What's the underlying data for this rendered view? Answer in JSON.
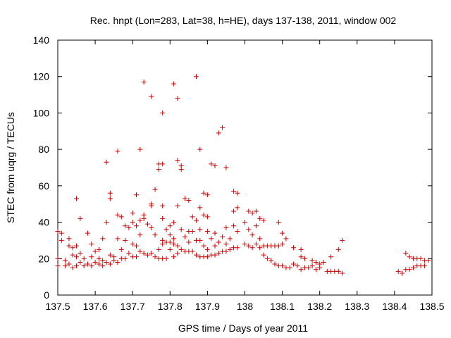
{
  "chart_data": {
    "type": "scatter",
    "title": "Rec. hnpt (Lon=283, Lat=38, h=HE), days 137-138, 2011, window 002",
    "xlabel": "GPS time / Days of year 2011",
    "ylabel": "STEC from uqrg / TECUs",
    "xlim": [
      137.5,
      138.5
    ],
    "ylim": [
      0,
      140
    ],
    "xticks": [
      "137.5",
      "137.6",
      "137.7",
      "137.8",
      "137.9",
      "138",
      "138.1",
      "138.2",
      "138.3",
      "138.4",
      "138.5"
    ],
    "yticks": [
      "0",
      "20",
      "40",
      "60",
      "80",
      "100",
      "120",
      "140"
    ],
    "grid": false,
    "marker": "+",
    "marker_color": "#cc0000",
    "series": [
      {
        "points": [
          [
            137.5,
            35
          ],
          [
            137.5,
            20
          ],
          [
            137.5,
            16
          ],
          [
            137.51,
            34
          ],
          [
            137.51,
            30
          ],
          [
            137.52,
            19
          ],
          [
            137.52,
            16
          ],
          [
            137.53,
            31
          ],
          [
            137.53,
            27
          ],
          [
            137.53,
            17
          ],
          [
            137.54,
            26
          ],
          [
            137.54,
            22
          ],
          [
            137.54,
            15
          ],
          [
            137.55,
            53
          ],
          [
            137.55,
            27
          ],
          [
            137.55,
            21
          ],
          [
            137.55,
            16
          ],
          [
            137.56,
            42
          ],
          [
            137.56,
            23
          ],
          [
            137.56,
            18
          ],
          [
            137.57,
            16
          ],
          [
            137.57,
            20
          ],
          [
            137.58,
            34
          ],
          [
            137.58,
            17
          ],
          [
            137.59,
            21
          ],
          [
            137.59,
            28
          ],
          [
            137.59,
            16
          ],
          [
            137.6,
            18
          ],
          [
            137.6,
            24
          ],
          [
            137.61,
            20
          ],
          [
            137.61,
            17
          ],
          [
            137.61,
            25
          ],
          [
            137.62,
            31
          ],
          [
            137.62,
            19
          ],
          [
            137.62,
            16
          ],
          [
            137.63,
            73
          ],
          [
            137.63,
            40
          ],
          [
            137.63,
            18
          ],
          [
            137.64,
            56
          ],
          [
            137.64,
            53
          ],
          [
            137.64,
            22
          ],
          [
            137.64,
            17
          ],
          [
            137.65,
            19
          ],
          [
            137.65,
            21
          ],
          [
            137.66,
            79
          ],
          [
            137.66,
            44
          ],
          [
            137.66,
            31
          ],
          [
            137.66,
            18
          ],
          [
            137.67,
            43
          ],
          [
            137.67,
            25
          ],
          [
            137.67,
            20
          ],
          [
            137.68,
            38
          ],
          [
            137.68,
            30
          ],
          [
            137.68,
            20
          ],
          [
            137.69,
            37
          ],
          [
            137.69,
            23
          ],
          [
            137.7,
            45
          ],
          [
            137.7,
            40
          ],
          [
            137.7,
            28
          ],
          [
            137.7,
            21
          ],
          [
            137.71,
            55
          ],
          [
            137.71,
            38
          ],
          [
            137.71,
            27
          ],
          [
            137.71,
            21
          ],
          [
            137.72,
            80
          ],
          [
            137.72,
            41
          ],
          [
            137.72,
            33
          ],
          [
            137.72,
            24
          ],
          [
            137.73,
            117
          ],
          [
            137.73,
            44
          ],
          [
            137.73,
            42
          ],
          [
            137.73,
            23
          ],
          [
            137.74,
            39
          ],
          [
            137.74,
            22
          ],
          [
            137.75,
            109
          ],
          [
            137.75,
            50
          ],
          [
            137.75,
            49
          ],
          [
            137.75,
            37
          ],
          [
            137.75,
            23
          ],
          [
            137.76,
            58
          ],
          [
            137.76,
            33
          ],
          [
            137.76,
            21
          ],
          [
            137.77,
            72
          ],
          [
            137.77,
            69
          ],
          [
            137.77,
            25
          ],
          [
            137.77,
            20
          ],
          [
            137.78,
            100
          ],
          [
            137.78,
            72
          ],
          [
            137.78,
            49
          ],
          [
            137.78,
            42
          ],
          [
            137.78,
            30
          ],
          [
            137.78,
            28
          ],
          [
            137.78,
            20
          ],
          [
            137.79,
            36
          ],
          [
            137.79,
            29
          ],
          [
            137.79,
            20
          ],
          [
            137.8,
            38
          ],
          [
            137.8,
            33
          ],
          [
            137.8,
            29
          ],
          [
            137.8,
            25
          ],
          [
            137.81,
            116
          ],
          [
            137.81,
            40
          ],
          [
            137.81,
            31
          ],
          [
            137.81,
            28
          ],
          [
            137.81,
            21
          ],
          [
            137.82,
            108
          ],
          [
            137.82,
            74
          ],
          [
            137.82,
            49
          ],
          [
            137.82,
            27
          ],
          [
            137.82,
            23
          ],
          [
            137.83,
            71
          ],
          [
            137.83,
            69
          ],
          [
            137.83,
            36
          ],
          [
            137.83,
            25
          ],
          [
            137.84,
            53
          ],
          [
            137.84,
            32
          ],
          [
            137.84,
            24
          ],
          [
            137.85,
            52
          ],
          [
            137.85,
            35
          ],
          [
            137.85,
            29
          ],
          [
            137.85,
            24
          ],
          [
            137.86,
            43
          ],
          [
            137.86,
            35
          ],
          [
            137.86,
            24
          ],
          [
            137.87,
            120
          ],
          [
            137.87,
            41
          ],
          [
            137.87,
            30
          ],
          [
            137.87,
            22
          ],
          [
            137.88,
            80
          ],
          [
            137.88,
            48
          ],
          [
            137.88,
            36
          ],
          [
            137.88,
            30
          ],
          [
            137.88,
            21
          ],
          [
            137.89,
            56
          ],
          [
            137.89,
            44
          ],
          [
            137.89,
            27
          ],
          [
            137.89,
            21
          ],
          [
            137.9,
            55
          ],
          [
            137.9,
            43
          ],
          [
            137.9,
            35
          ],
          [
            137.9,
            25
          ],
          [
            137.9,
            21
          ],
          [
            137.91,
            72
          ],
          [
            137.91,
            31
          ],
          [
            137.91,
            22
          ],
          [
            137.92,
            71
          ],
          [
            137.92,
            34
          ],
          [
            137.92,
            27
          ],
          [
            137.92,
            22
          ],
          [
            137.93,
            89
          ],
          [
            137.93,
            29
          ],
          [
            137.93,
            23
          ],
          [
            137.94,
            92
          ],
          [
            137.94,
            32
          ],
          [
            137.94,
            24
          ],
          [
            137.95,
            70
          ],
          [
            137.95,
            37
          ],
          [
            137.95,
            28
          ],
          [
            137.95,
            24
          ],
          [
            137.96,
            31
          ],
          [
            137.96,
            25
          ],
          [
            137.97,
            57
          ],
          [
            137.97,
            46
          ],
          [
            137.97,
            38
          ],
          [
            137.97,
            26
          ],
          [
            137.98,
            56
          ],
          [
            137.98,
            48
          ],
          [
            137.98,
            35
          ],
          [
            137.98,
            26
          ],
          [
            138.0,
            40
          ],
          [
            138.0,
            28
          ],
          [
            138.01,
            46
          ],
          [
            138.01,
            36
          ],
          [
            138.01,
            27
          ],
          [
            138.02,
            33
          ],
          [
            138.02,
            26
          ],
          [
            138.02,
            45
          ],
          [
            138.03,
            46
          ],
          [
            138.03,
            38
          ],
          [
            138.03,
            28
          ],
          [
            138.04,
            42
          ],
          [
            138.04,
            31
          ],
          [
            138.04,
            26
          ],
          [
            138.05,
            41
          ],
          [
            138.05,
            27
          ],
          [
            138.05,
            22
          ],
          [
            138.06,
            27
          ],
          [
            138.06,
            20
          ],
          [
            138.07,
            27
          ],
          [
            138.07,
            19
          ],
          [
            138.08,
            27
          ],
          [
            138.08,
            17
          ],
          [
            138.09,
            40
          ],
          [
            138.09,
            27
          ],
          [
            138.09,
            16
          ],
          [
            138.1,
            34
          ],
          [
            138.1,
            28
          ],
          [
            138.1,
            16
          ],
          [
            138.11,
            31
          ],
          [
            138.11,
            15
          ],
          [
            138.12,
            15
          ],
          [
            138.13,
            26
          ],
          [
            138.13,
            17
          ],
          [
            138.14,
            16
          ],
          [
            138.15,
            25
          ],
          [
            138.15,
            21
          ],
          [
            138.15,
            14
          ],
          [
            138.16,
            20
          ],
          [
            138.16,
            15
          ],
          [
            138.17,
            15
          ],
          [
            138.18,
            19
          ],
          [
            138.18,
            16
          ],
          [
            138.19,
            18
          ],
          [
            138.19,
            14
          ],
          [
            138.2,
            17
          ],
          [
            138.2,
            15
          ],
          [
            138.21,
            18
          ],
          [
            138.22,
            13
          ],
          [
            138.23,
            21
          ],
          [
            138.23,
            13
          ],
          [
            138.24,
            13
          ],
          [
            138.25,
            25
          ],
          [
            138.25,
            13
          ],
          [
            138.26,
            30
          ],
          [
            138.26,
            12
          ],
          [
            138.41,
            13
          ],
          [
            138.42,
            12
          ],
          [
            138.43,
            23
          ],
          [
            138.43,
            14
          ],
          [
            138.44,
            21
          ],
          [
            138.44,
            14
          ],
          [
            138.45,
            20
          ],
          [
            138.45,
            15
          ],
          [
            138.46,
            20
          ],
          [
            138.46,
            16
          ],
          [
            138.47,
            20
          ],
          [
            138.47,
            16
          ],
          [
            138.48,
            19
          ],
          [
            138.48,
            16
          ],
          [
            138.49,
            19
          ]
        ]
      }
    ]
  }
}
